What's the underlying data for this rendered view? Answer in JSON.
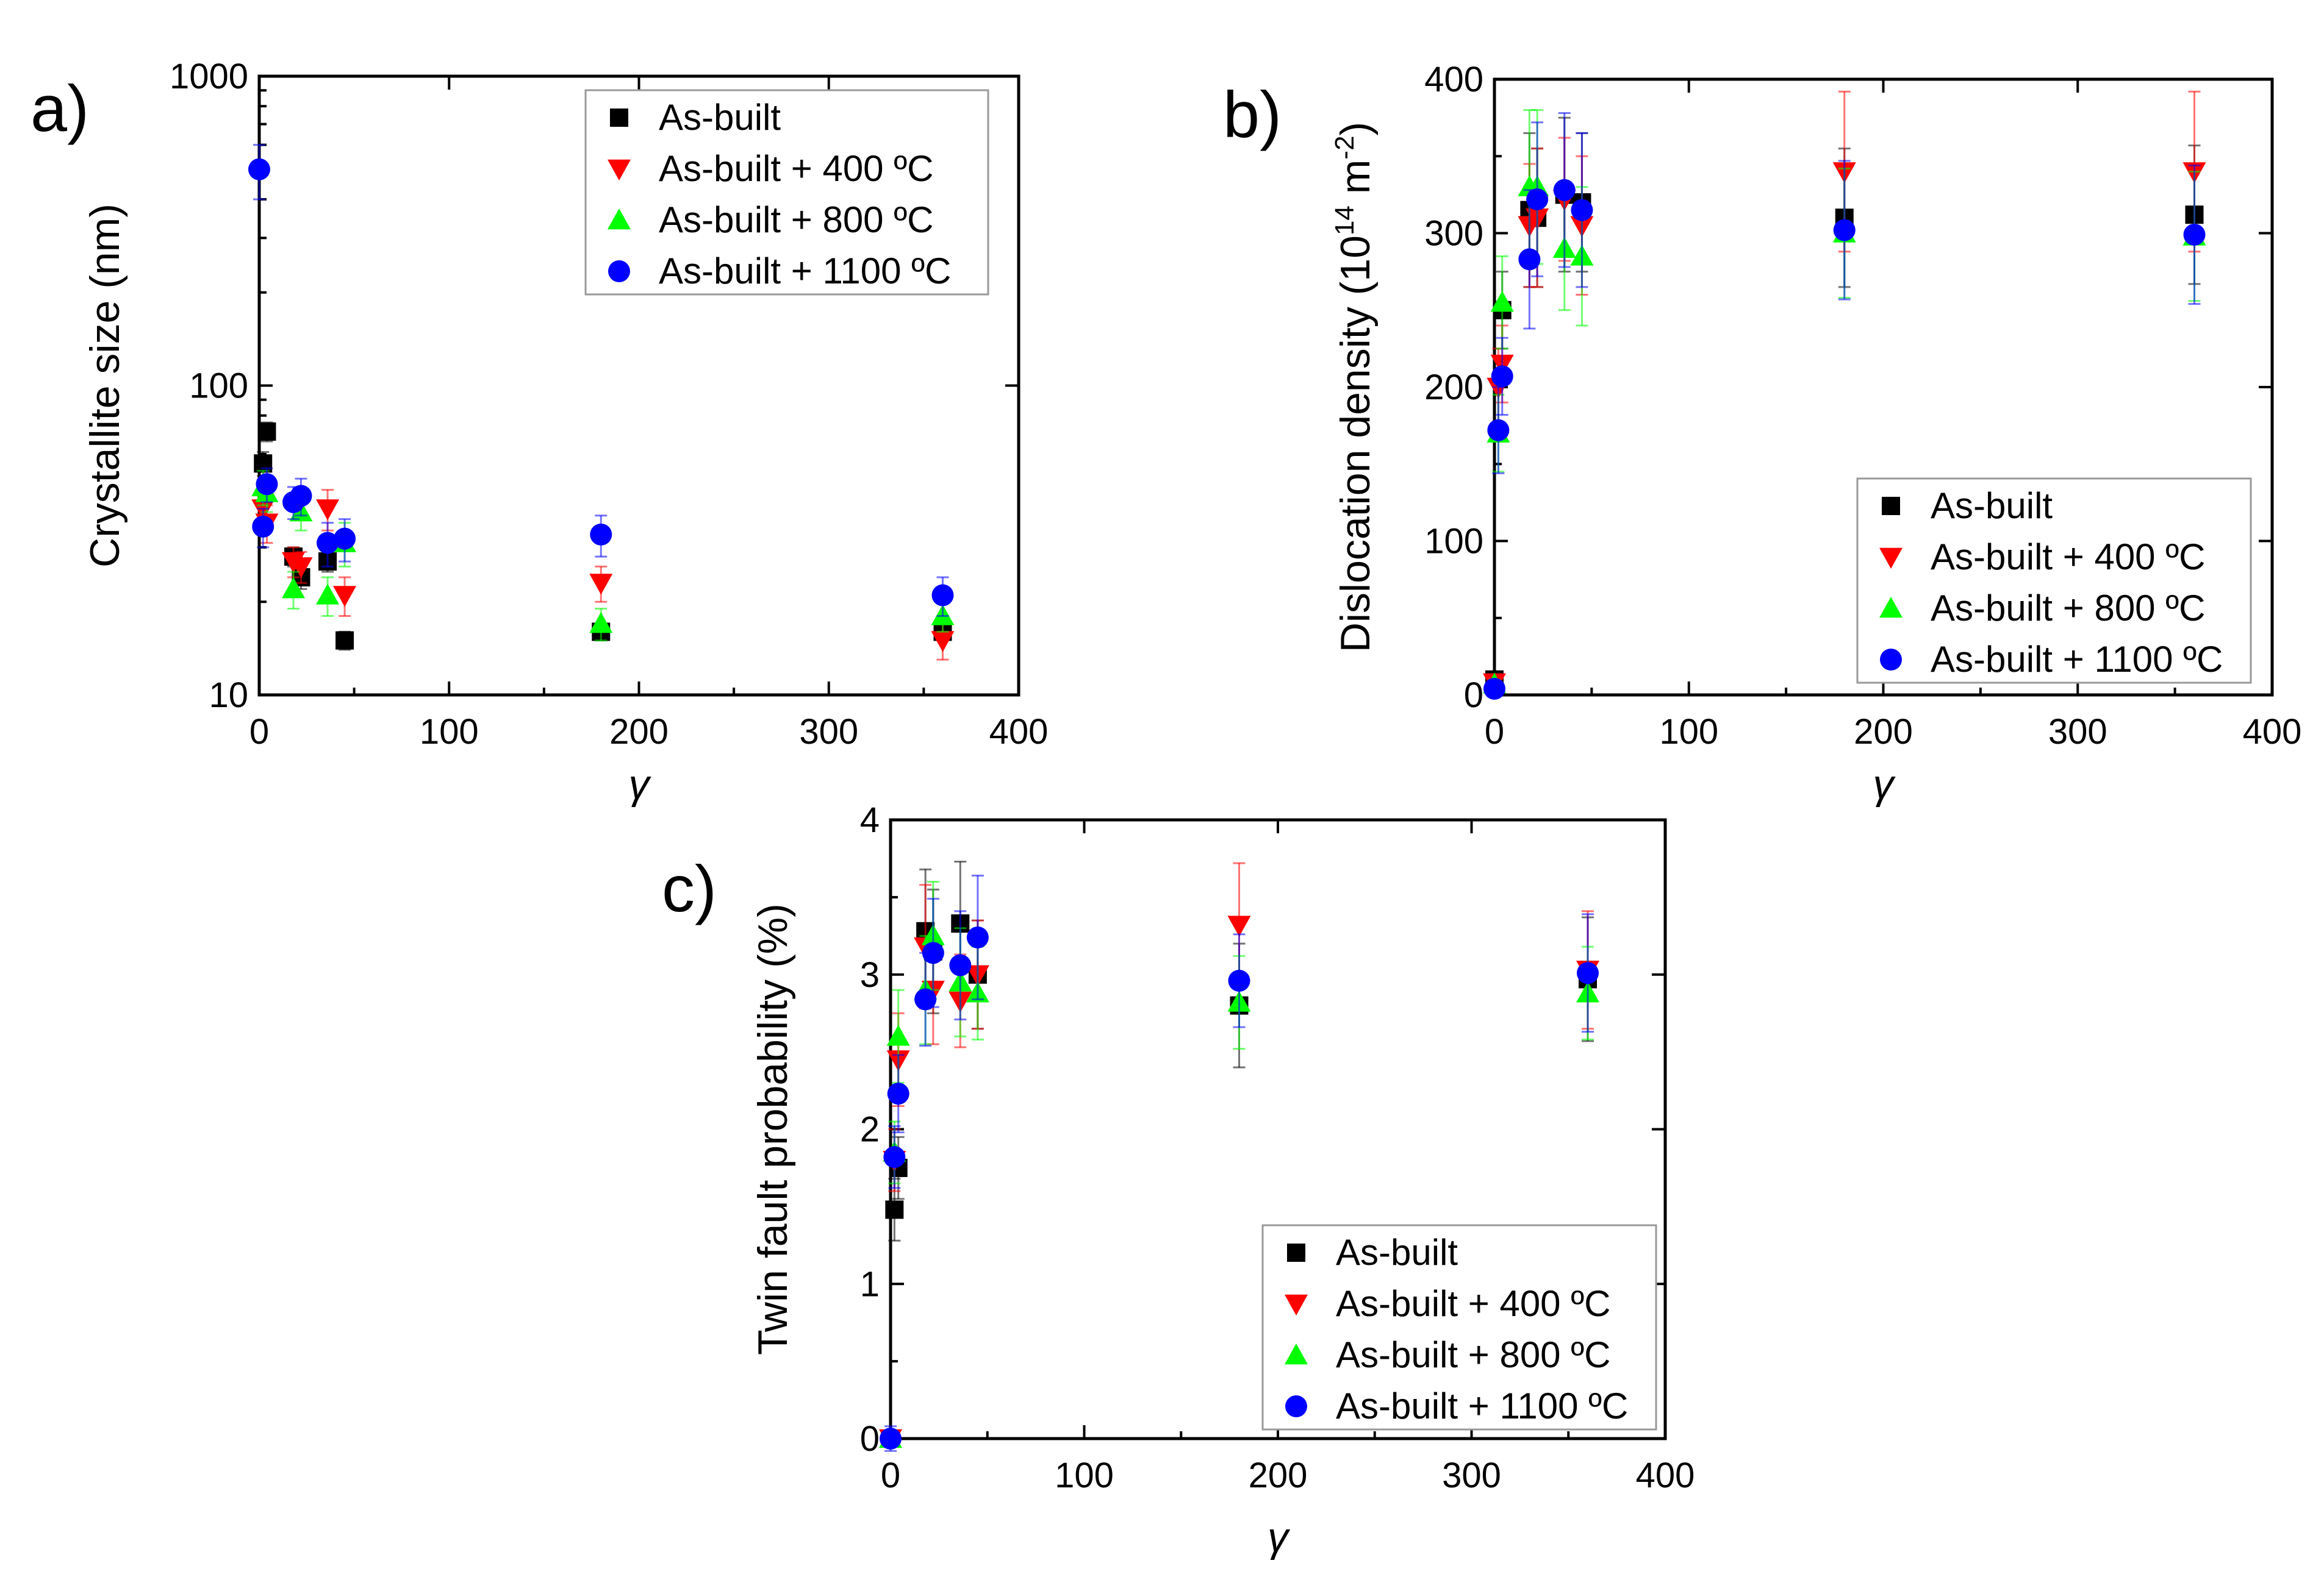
{
  "chart_data": [
    {
      "panel_label": "a)",
      "type": "scatter",
      "xlabel": "γ",
      "ylabel": "Crystallite size (nm)",
      "yscale": "log",
      "xlim": [
        0,
        400
      ],
      "ylim": [
        10,
        1000
      ],
      "xticks": [
        0,
        100,
        200,
        300,
        400
      ],
      "xtick_labels": [
        "0",
        "100",
        "200",
        "300",
        "400"
      ],
      "yticks": [
        10,
        100,
        1000
      ],
      "ytick_labels": [
        "10",
        "100",
        "1000"
      ],
      "legend_position": "top-right",
      "series": [
        {
          "name": "As-built",
          "marker": "square",
          "color": "#000000",
          "x": [
            2,
            4,
            18,
            22,
            36,
            45,
            180,
            360
          ],
          "y": [
            56,
            71,
            28,
            24,
            27,
            15,
            16,
            16
          ],
          "err": [
            5,
            5,
            2,
            2,
            2,
            1,
            1,
            1
          ]
        },
        {
          "name": "As-built + 400 ºC",
          "marker": "triangle-down",
          "color": "#ff0000",
          "x": [
            2,
            4,
            18,
            22,
            36,
            45,
            180,
            360
          ],
          "y": [
            40,
            36,
            27,
            26,
            40,
            21,
            23,
            15
          ],
          "err": [
            6,
            5,
            3,
            3,
            6,
            3,
            3,
            2
          ]
        },
        {
          "name": "As-built + 800 ºC",
          "marker": "triangle-up",
          "color": "#00ff00",
          "x": [
            2,
            4,
            18,
            22,
            36,
            45,
            180,
            360
          ],
          "y": [
            47,
            45,
            22,
            39,
            21,
            31,
            17,
            18
          ],
          "err": [
            6,
            6,
            3,
            5,
            3,
            5,
            2,
            2
          ]
        },
        {
          "name": "As-built + 1100 ºC",
          "marker": "circle",
          "color": "#0000ff",
          "x": [
            0,
            2,
            4,
            18,
            22,
            36,
            45,
            180,
            360
          ],
          "y": [
            500,
            35,
            48,
            42,
            44,
            31,
            32,
            33,
            21
          ],
          "err": [
            100,
            5,
            6,
            5,
            6,
            5,
            5,
            5,
            3
          ]
        }
      ]
    },
    {
      "panel_label": "b)",
      "type": "scatter",
      "xlabel": "γ",
      "ylabel": "Dislocation density (10",
      "ylabel_sup1": "14",
      "ylabel_mid": " m",
      "ylabel_sup2": "-2",
      "ylabel_end": ")",
      "xlim": [
        0,
        400
      ],
      "ylim": [
        0,
        400
      ],
      "xticks": [
        0,
        100,
        200,
        300,
        400
      ],
      "xtick_labels": [
        "0",
        "100",
        "200",
        "300",
        "400"
      ],
      "yticks": [
        0,
        100,
        200,
        300,
        400
      ],
      "ytick_labels": [
        "0",
        "100",
        "200",
        "300",
        "400"
      ],
      "legend_position": "bottom-right",
      "series": [
        {
          "name": "As-built",
          "marker": "square",
          "color": "#000000",
          "x": [
            0,
            4,
            18,
            22,
            36,
            45,
            180,
            360
          ],
          "y": [
            10,
            250,
            315,
            310,
            325,
            320,
            310,
            312
          ],
          "err": [
            3,
            25,
            50,
            45,
            50,
            45,
            45,
            45
          ]
        },
        {
          "name": "As-built + 400 ºC",
          "marker": "triangle-down",
          "color": "#ff0000",
          "x": [
            0,
            2,
            4,
            18,
            22,
            36,
            45,
            180,
            360
          ],
          "y": [
            8,
            200,
            215,
            305,
            310,
            322,
            305,
            340,
            340
          ],
          "err": [
            3,
            25,
            25,
            40,
            45,
            40,
            45,
            52,
            52
          ]
        },
        {
          "name": "As-built + 800 ºC",
          "marker": "triangle-up",
          "color": "#00ff00",
          "x": [
            0,
            2,
            4,
            18,
            22,
            36,
            45,
            180,
            360
          ],
          "y": [
            7,
            170,
            255,
            330,
            330,
            290,
            285,
            300,
            298
          ],
          "err": [
            3,
            25,
            30,
            50,
            50,
            40,
            45,
            42,
            42
          ]
        },
        {
          "name": "As-built + 1100 ºC",
          "marker": "circle",
          "color": "#0000ff",
          "x": [
            0,
            2,
            4,
            18,
            22,
            36,
            45,
            180,
            360
          ],
          "y": [
            4,
            172,
            207,
            283,
            322,
            328,
            315,
            302,
            299
          ],
          "err": [
            2,
            28,
            25,
            45,
            50,
            50,
            50,
            45,
            45
          ]
        }
      ]
    },
    {
      "panel_label": "c)",
      "type": "scatter",
      "xlabel": "γ",
      "ylabel": "Twin fault probability (%)",
      "xlim": [
        0,
        400
      ],
      "ylim": [
        0,
        4
      ],
      "xticks": [
        0,
        100,
        200,
        300,
        400
      ],
      "xtick_labels": [
        "0",
        "100",
        "200",
        "300",
        "400"
      ],
      "yticks": [
        0,
        1,
        2,
        3,
        4
      ],
      "ytick_labels": [
        "0",
        "1",
        "2",
        "3",
        "4"
      ],
      "legend_position": "bottom-right",
      "series": [
        {
          "name": "As-built",
          "marker": "square",
          "color": "#000000",
          "x": [
            0,
            2,
            4,
            18,
            22,
            36,
            45,
            180,
            360
          ],
          "y": [
            0,
            1.48,
            1.75,
            3.28,
            3.15,
            3.33,
            3.0,
            2.8,
            2.97
          ],
          "err": [
            0.05,
            0.2,
            0.2,
            0.4,
            0.4,
            0.4,
            0.35,
            0.4,
            0.4
          ]
        },
        {
          "name": "As-built + 400 ºC",
          "marker": "triangle-down",
          "color": "#ff0000",
          "x": [
            0,
            2,
            4,
            18,
            22,
            36,
            45,
            180,
            360
          ],
          "y": [
            0,
            1.8,
            2.45,
            3.18,
            2.9,
            2.83,
            3.0,
            3.32,
            3.03
          ],
          "err": [
            0.05,
            0.2,
            0.3,
            0.4,
            0.35,
            0.3,
            0.35,
            0.4,
            0.38
          ]
        },
        {
          "name": "As-built + 800 ºC",
          "marker": "triangle-up",
          "color": "#00ff00",
          "x": [
            0,
            2,
            4,
            18,
            22,
            36,
            45,
            180,
            360
          ],
          "y": [
            0,
            1.85,
            2.6,
            2.9,
            3.25,
            2.95,
            2.88,
            2.82,
            2.88
          ],
          "err": [
            0.05,
            0.2,
            0.3,
            0.35,
            0.35,
            0.35,
            0.3,
            0.3,
            0.3
          ]
        },
        {
          "name": "As-built + 1100 ºC",
          "marker": "circle",
          "color": "#0000ff",
          "x": [
            0,
            2,
            4,
            18,
            22,
            36,
            45,
            180,
            360
          ],
          "y": [
            0,
            1.82,
            2.23,
            2.84,
            3.14,
            3.06,
            3.24,
            2.96,
            3.01
          ],
          "err": [
            0.08,
            0.2,
            0.25,
            0.3,
            0.35,
            0.35,
            0.4,
            0.3,
            0.38
          ]
        }
      ]
    }
  ]
}
